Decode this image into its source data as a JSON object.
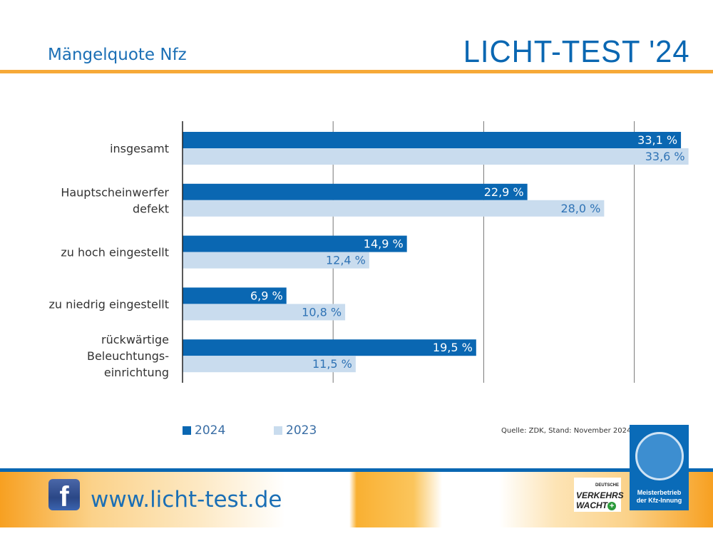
{
  "header": {
    "subtitle": "Mängelquote Nfz",
    "brand": "LICHT-TEST '24"
  },
  "chart_data": {
    "type": "bar",
    "orientation": "horizontal",
    "categories": [
      "insgesamt",
      "Hauptscheinwerfer defekt",
      "zu hoch eingestellt",
      "zu niedrig eingestellt",
      "rückwärtige Beleuchtungs-einrichtung"
    ],
    "category_lines": [
      [
        "insgesamt"
      ],
      [
        "Hauptscheinwerfer",
        "defekt"
      ],
      [
        "zu hoch eingestellt"
      ],
      [
        "zu niedrig eingestellt"
      ],
      [
        "rückwärtige",
        "Beleuchtungs-",
        "einrichtung"
      ]
    ],
    "series": [
      {
        "name": "2024",
        "values": [
          33.1,
          22.9,
          14.9,
          6.9,
          19.5
        ],
        "labels": [
          "33,1 %",
          "22,9 %",
          "14,9 %",
          "6,9 %",
          "19,5 %"
        ],
        "color": "#0a67b2",
        "label_color": "#ffffff"
      },
      {
        "name": "2023",
        "values": [
          33.6,
          28.0,
          12.4,
          10.8,
          11.5
        ],
        "labels": [
          "33,6 %",
          "28,0 %",
          "12,4 %",
          "10,8 %",
          "11,5 %"
        ],
        "color": "#c9dcee",
        "label_color": "#2f73b5"
      }
    ],
    "xlim": [
      0,
      35
    ],
    "gridlines": [
      10,
      20,
      30
    ],
    "grid": true,
    "legend": "bottom-left"
  },
  "source": "Quelle: ZDK, Stand: November 2024",
  "footer": {
    "url": "www.licht-test.de",
    "facebook": "f",
    "vw_small": "DEUTSCHE",
    "vw_line1": "VERKEHRS",
    "vw_line2": "WACHT",
    "seal_line1": "Meisterbetrieb",
    "seal_line2": "der Kfz-Innung"
  }
}
